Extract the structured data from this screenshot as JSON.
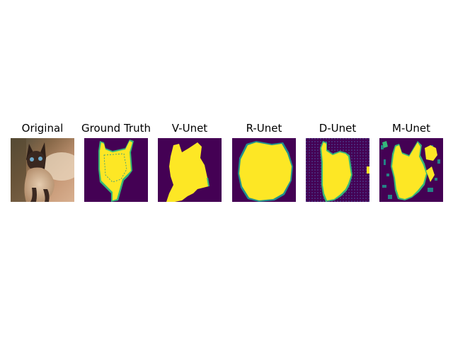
{
  "panels": [
    {
      "title": "Original"
    },
    {
      "title": "Ground Truth"
    },
    {
      "title": "V-Unet"
    },
    {
      "title": "R-Unet"
    },
    {
      "title": "D-Unet"
    },
    {
      "title": "M-Unet"
    }
  ],
  "colors": {
    "mask_background": "#440154",
    "mask_foreground": "#fde725",
    "mask_edge": "#21918c",
    "mask_edge_light": "#35b779"
  }
}
